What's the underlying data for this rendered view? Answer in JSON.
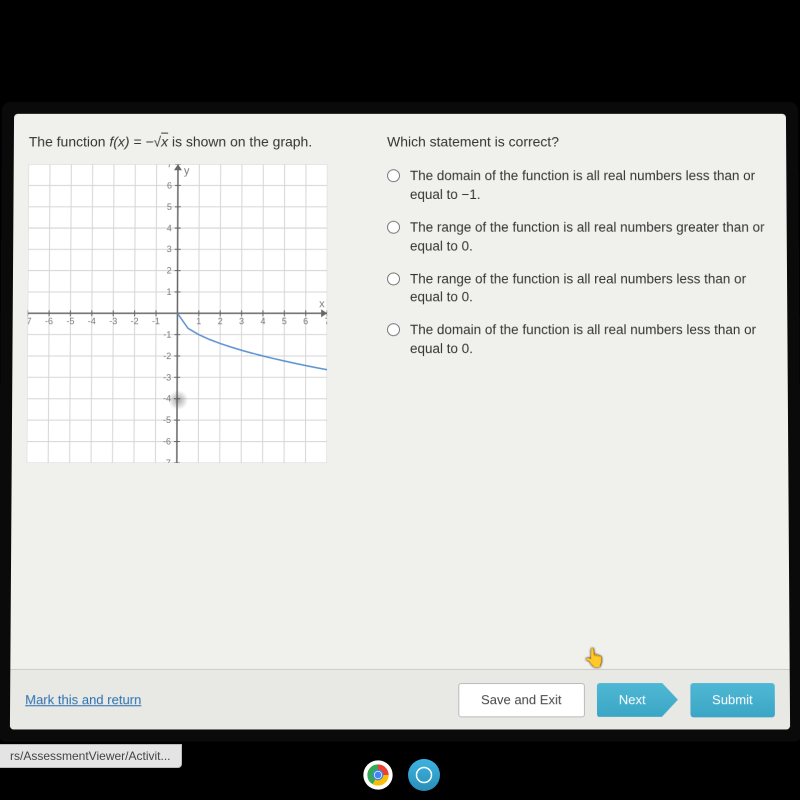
{
  "left": {
    "prompt_pre": "The function ",
    "prompt_func": "f(x) = −√x",
    "prompt_post": " is shown on the graph.",
    "graph": {
      "xmin": -7,
      "xmax": 7,
      "ymin": -7,
      "ymax": 7,
      "x_ticks": [
        -7,
        -6,
        -5,
        -4,
        -3,
        -2,
        -1,
        1,
        2,
        3,
        4,
        5,
        6,
        7
      ],
      "y_ticks": [
        -7,
        -6,
        -5,
        -4,
        -3,
        -2,
        -1,
        1,
        2,
        3,
        4,
        5,
        6,
        7
      ],
      "x_label": "x",
      "y_label": "y",
      "grid_color": "#d5d5d5",
      "axis_color": "#666",
      "tick_label_color": "#777",
      "tick_fontsize": 9,
      "curve_color": "#5a8fd0",
      "curve_width": 1.5,
      "background": "#ffffff",
      "curve_points": [
        [
          0,
          0
        ],
        [
          0.5,
          -0.707
        ],
        [
          1,
          -1
        ],
        [
          1.5,
          -1.225
        ],
        [
          2,
          -1.414
        ],
        [
          2.5,
          -1.581
        ],
        [
          3,
          -1.732
        ],
        [
          3.5,
          -1.871
        ],
        [
          4,
          -2
        ],
        [
          4.5,
          -2.121
        ],
        [
          5,
          -2.236
        ],
        [
          5.5,
          -2.345
        ],
        [
          6,
          -2.449
        ],
        [
          6.5,
          -2.55
        ],
        [
          7,
          -2.646
        ]
      ]
    }
  },
  "right": {
    "question": "Which statement is correct?",
    "options": [
      "The domain of the function is all real numbers less than or equal to −1.",
      "The range of the function is all real numbers greater than or equal to 0.",
      "The range of the function is all real numbers less than or equal to 0.",
      "The domain of the function is all real numbers less than or equal to 0."
    ]
  },
  "footer": {
    "mark": "Mark this and return",
    "save": "Save and Exit",
    "next": "Next",
    "submit": "Submit"
  },
  "url_tip": "rs/AssessmentViewer/Activit...",
  "colors": {
    "app_bg": "#f0f0ed",
    "footer_bg": "#e8e8e5",
    "link": "#2a6fb0",
    "btn_blue_top": "#4fb8d4",
    "btn_blue_bottom": "#3aa5c5"
  }
}
